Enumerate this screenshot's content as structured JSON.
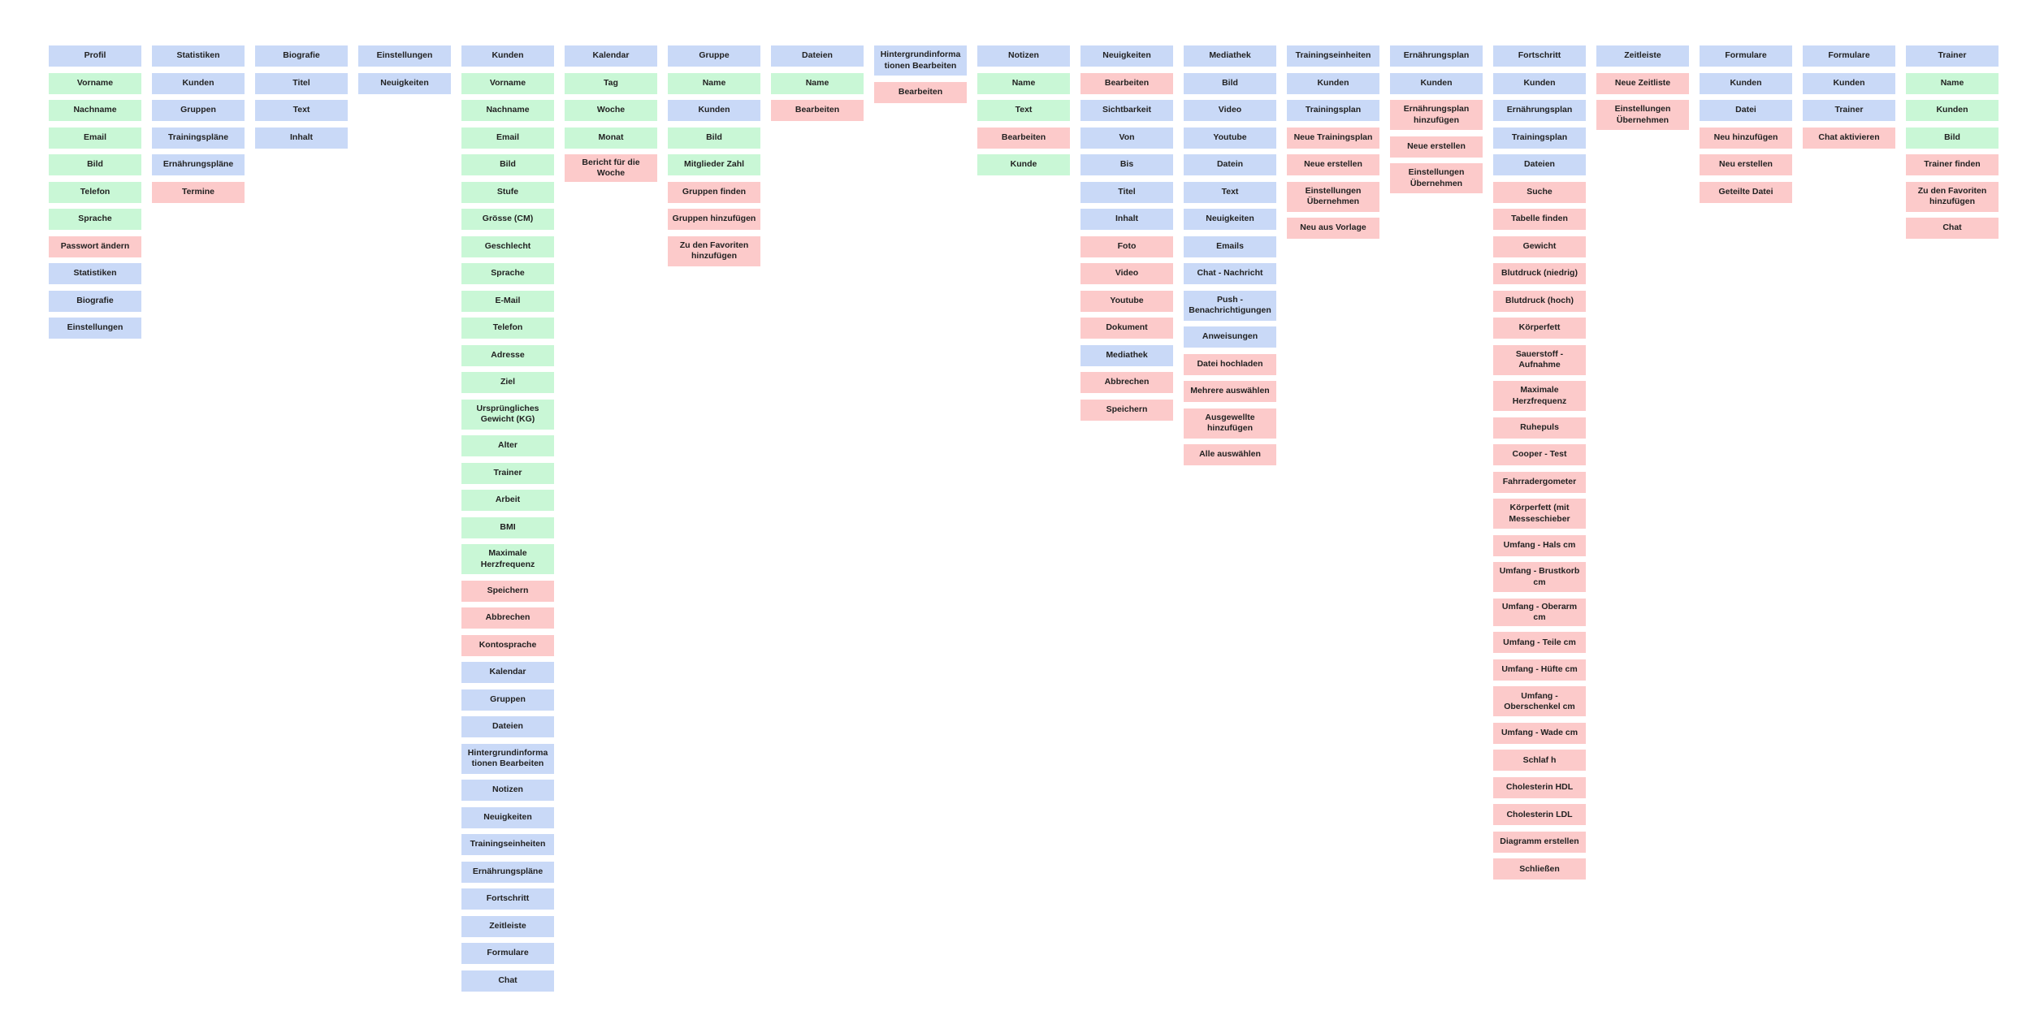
{
  "colors": {
    "blue": "#c9d9f7",
    "green": "#c9f7d6",
    "red": "#fccaca"
  },
  "columns": [
    {
      "items": [
        {
          "text": "Profil",
          "color": "blue"
        },
        {
          "text": "Vorname",
          "color": "green"
        },
        {
          "text": "Nachname",
          "color": "green"
        },
        {
          "text": "Email",
          "color": "green"
        },
        {
          "text": "Bild",
          "color": "green"
        },
        {
          "text": "Telefon",
          "color": "green"
        },
        {
          "text": "Sprache",
          "color": "green"
        },
        {
          "text": "Passwort ändern",
          "color": "red"
        },
        {
          "text": "Statistiken",
          "color": "blue"
        },
        {
          "text": "Biografie",
          "color": "blue"
        },
        {
          "text": "Einstellungen",
          "color": "blue"
        }
      ]
    },
    {
      "items": [
        {
          "text": "Statistiken",
          "color": "blue"
        },
        {
          "text": "Kunden",
          "color": "blue"
        },
        {
          "text": "Gruppen",
          "color": "blue"
        },
        {
          "text": "Trainingspläne",
          "color": "blue"
        },
        {
          "text": "Ernährungspläne",
          "color": "blue"
        },
        {
          "text": "Termine",
          "color": "red"
        }
      ]
    },
    {
      "items": [
        {
          "text": "Biografie",
          "color": "blue"
        },
        {
          "text": "Titel",
          "color": "blue"
        },
        {
          "text": "Text",
          "color": "blue"
        },
        {
          "text": "Inhalt",
          "color": "blue"
        }
      ]
    },
    {
      "items": [
        {
          "text": "Einstellungen",
          "color": "blue"
        },
        {
          "text": "Neuigkeiten",
          "color": "blue"
        }
      ]
    },
    {
      "items": [
        {
          "text": "Kunden",
          "color": "blue"
        },
        {
          "text": "Vorname",
          "color": "green"
        },
        {
          "text": "Nachname",
          "color": "green"
        },
        {
          "text": "Email",
          "color": "green"
        },
        {
          "text": "Bild",
          "color": "green"
        },
        {
          "text": "Stufe",
          "color": "green"
        },
        {
          "text": "Grösse (CM)",
          "color": "green"
        },
        {
          "text": "Geschlecht",
          "color": "green"
        },
        {
          "text": "Sprache",
          "color": "green"
        },
        {
          "text": "E-Mail",
          "color": "green"
        },
        {
          "text": "Telefon",
          "color": "green"
        },
        {
          "text": "Adresse",
          "color": "green"
        },
        {
          "text": "Ziel",
          "color": "green"
        },
        {
          "text": "Ursprüngliches Gewicht (KG)",
          "color": "green",
          "two": true
        },
        {
          "text": "Alter",
          "color": "green"
        },
        {
          "text": "Trainer",
          "color": "green"
        },
        {
          "text": "Arbeit",
          "color": "green"
        },
        {
          "text": "BMI",
          "color": "green"
        },
        {
          "text": "Maximale Herzfrequenz",
          "color": "green",
          "two": true
        },
        {
          "text": "Speichern",
          "color": "red"
        },
        {
          "text": "Abbrechen",
          "color": "red"
        },
        {
          "text": "Kontosprache",
          "color": "red"
        },
        {
          "text": "Kalendar",
          "color": "blue"
        },
        {
          "text": "Gruppen",
          "color": "blue"
        },
        {
          "text": "Dateien",
          "color": "blue"
        },
        {
          "text": "Hintergrundinforma tionen Bearbeiten",
          "color": "blue",
          "two": true
        },
        {
          "text": "Notizen",
          "color": "blue"
        },
        {
          "text": "Neuigkeiten",
          "color": "blue"
        },
        {
          "text": "Trainingseinheiten",
          "color": "blue"
        },
        {
          "text": "Ernährungspläne",
          "color": "blue"
        },
        {
          "text": "Fortschritt",
          "color": "blue"
        },
        {
          "text": "Zeitleiste",
          "color": "blue"
        },
        {
          "text": "Formulare",
          "color": "blue"
        },
        {
          "text": "Chat",
          "color": "blue"
        }
      ]
    },
    {
      "items": [
        {
          "text": "Kalendar",
          "color": "blue"
        },
        {
          "text": "Tag",
          "color": "green"
        },
        {
          "text": "Woche",
          "color": "green"
        },
        {
          "text": "Monat",
          "color": "green"
        },
        {
          "text": "Bericht für die Woche",
          "color": "red"
        }
      ]
    },
    {
      "items": [
        {
          "text": "Gruppe",
          "color": "blue"
        },
        {
          "text": "Name",
          "color": "green"
        },
        {
          "text": "Kunden",
          "color": "blue"
        },
        {
          "text": "Bild",
          "color": "green"
        },
        {
          "text": "Mitglieder Zahl",
          "color": "green"
        },
        {
          "text": "Gruppen finden",
          "color": "red"
        },
        {
          "text": "Gruppen hinzufügen",
          "color": "red"
        },
        {
          "text": "Zu den Favoriten hinzufügen",
          "color": "red",
          "two": true
        }
      ]
    },
    {
      "items": [
        {
          "text": "Dateien",
          "color": "blue"
        },
        {
          "text": "Name",
          "color": "green"
        },
        {
          "text": "Bearbeiten",
          "color": "red"
        }
      ]
    },
    {
      "items": [
        {
          "text": "Hintergrundinforma tionen Bearbeiten",
          "color": "blue",
          "two": true
        },
        {
          "text": "Bearbeiten",
          "color": "red"
        }
      ]
    },
    {
      "items": [
        {
          "text": "Notizen",
          "color": "blue"
        },
        {
          "text": "Name",
          "color": "green"
        },
        {
          "text": "Text",
          "color": "green"
        },
        {
          "text": "Bearbeiten",
          "color": "red"
        },
        {
          "text": "Kunde",
          "color": "green"
        }
      ]
    },
    {
      "items": [
        {
          "text": "Neuigkeiten",
          "color": "blue"
        },
        {
          "text": "Bearbeiten",
          "color": "red"
        },
        {
          "text": "Sichtbarkeit",
          "color": "blue"
        },
        {
          "text": "Von",
          "color": "blue"
        },
        {
          "text": "Bis",
          "color": "blue"
        },
        {
          "text": "Titel",
          "color": "blue"
        },
        {
          "text": "Inhalt",
          "color": "blue"
        },
        {
          "text": "Foto",
          "color": "red"
        },
        {
          "text": "Video",
          "color": "red"
        },
        {
          "text": "Youtube",
          "color": "red"
        },
        {
          "text": "Dokument",
          "color": "red"
        },
        {
          "text": "Mediathek",
          "color": "blue"
        },
        {
          "text": "Abbrechen",
          "color": "red"
        },
        {
          "text": "Speichern",
          "color": "red"
        }
      ]
    },
    {
      "items": [
        {
          "text": "Mediathek",
          "color": "blue"
        },
        {
          "text": "Bild",
          "color": "blue"
        },
        {
          "text": "Video",
          "color": "blue"
        },
        {
          "text": "Youtube",
          "color": "blue"
        },
        {
          "text": "Datein",
          "color": "blue"
        },
        {
          "text": "Text",
          "color": "blue"
        },
        {
          "text": "Neuigkeiten",
          "color": "blue"
        },
        {
          "text": "Emails",
          "color": "blue"
        },
        {
          "text": "Chat - Nachricht",
          "color": "blue"
        },
        {
          "text": "Push - Benachrichtigungen",
          "color": "blue",
          "two": true
        },
        {
          "text": "Anweisungen",
          "color": "blue"
        },
        {
          "text": "Datei hochladen",
          "color": "red"
        },
        {
          "text": "Mehrere auswählen",
          "color": "red"
        },
        {
          "text": "Ausgewellte hinzufügen",
          "color": "red",
          "two": true
        },
        {
          "text": "Alle auswählen",
          "color": "red"
        }
      ]
    },
    {
      "items": [
        {
          "text": "Trainingseinheiten",
          "color": "blue"
        },
        {
          "text": "Kunden",
          "color": "blue"
        },
        {
          "text": "Trainingsplan",
          "color": "blue"
        },
        {
          "text": "Neue Trainingsplan",
          "color": "red"
        },
        {
          "text": "Neue erstellen",
          "color": "red"
        },
        {
          "text": "Einstellungen Übernehmen",
          "color": "red",
          "two": true
        },
        {
          "text": "Neu aus Vorlage",
          "color": "red"
        }
      ]
    },
    {
      "items": [
        {
          "text": "Ernährungsplan",
          "color": "blue"
        },
        {
          "text": "Kunden",
          "color": "blue"
        },
        {
          "text": "Ernährungsplan hinzufügen",
          "color": "red",
          "two": true
        },
        {
          "text": "Neue erstellen",
          "color": "red"
        },
        {
          "text": "Einstellungen Übernehmen",
          "color": "red",
          "two": true
        }
      ]
    },
    {
      "items": [
        {
          "text": "Fortschritt",
          "color": "blue"
        },
        {
          "text": "Kunden",
          "color": "blue"
        },
        {
          "text": "Ernährungsplan",
          "color": "blue"
        },
        {
          "text": "Trainingsplan",
          "color": "blue"
        },
        {
          "text": "Dateien",
          "color": "blue"
        },
        {
          "text": "Suche",
          "color": "red"
        },
        {
          "text": "Tabelle finden",
          "color": "red"
        },
        {
          "text": "Gewicht",
          "color": "red"
        },
        {
          "text": "Blutdruck (niedrig)",
          "color": "red"
        },
        {
          "text": "Blutdruck (hoch)",
          "color": "red"
        },
        {
          "text": "Körperfett",
          "color": "red"
        },
        {
          "text": "Sauerstoff - Aufnahme",
          "color": "red",
          "two": true
        },
        {
          "text": "Maximale Herzfrequenz",
          "color": "red",
          "two": true
        },
        {
          "text": "Ruhepuls",
          "color": "red"
        },
        {
          "text": "Cooper - Test",
          "color": "red"
        },
        {
          "text": "Fahrradergometer",
          "color": "red"
        },
        {
          "text": "Körperfett (mit Messeschieber",
          "color": "red",
          "two": true
        },
        {
          "text": "Umfang - Hals cm",
          "color": "red"
        },
        {
          "text": "Umfang - Brustkorb cm",
          "color": "red",
          "two": true
        },
        {
          "text": "Umfang - Oberarm cm",
          "color": "red"
        },
        {
          "text": "Umfang - Teile cm",
          "color": "red"
        },
        {
          "text": "Umfang - Hüfte cm",
          "color": "red"
        },
        {
          "text": "Umfang - Oberschenkel cm",
          "color": "red",
          "two": true
        },
        {
          "text": "Umfang - Wade cm",
          "color": "red"
        },
        {
          "text": "Schlaf h",
          "color": "red"
        },
        {
          "text": "Cholesterin HDL",
          "color": "red"
        },
        {
          "text": "Cholesterin LDL",
          "color": "red"
        },
        {
          "text": "Diagramm erstellen",
          "color": "red"
        },
        {
          "text": "Schließen",
          "color": "red"
        }
      ]
    },
    {
      "items": [
        {
          "text": "Zeitleiste",
          "color": "blue"
        },
        {
          "text": "Neue Zeitliste",
          "color": "red"
        },
        {
          "text": "Einstellungen Übernehmen",
          "color": "red",
          "two": true
        }
      ]
    },
    {
      "items": [
        {
          "text": "Formulare",
          "color": "blue"
        },
        {
          "text": "Kunden",
          "color": "blue"
        },
        {
          "text": "Datei",
          "color": "blue"
        },
        {
          "text": "Neu hinzufügen",
          "color": "red"
        },
        {
          "text": "Neu erstellen",
          "color": "red"
        },
        {
          "text": "Geteilte Datei",
          "color": "red"
        }
      ]
    },
    {
      "items": [
        {
          "text": "Formulare",
          "color": "blue"
        },
        {
          "text": "Kunden",
          "color": "blue"
        },
        {
          "text": "Trainer",
          "color": "blue"
        },
        {
          "text": "Chat aktivieren",
          "color": "red"
        }
      ]
    },
    {
      "items": [
        {
          "text": "Trainer",
          "color": "blue"
        },
        {
          "text": "Name",
          "color": "green"
        },
        {
          "text": "Kunden",
          "color": "green"
        },
        {
          "text": "Bild",
          "color": "green"
        },
        {
          "text": "Trainer finden",
          "color": "red"
        },
        {
          "text": "Zu den Favoriten hinzufügen",
          "color": "red",
          "two": true
        },
        {
          "text": "Chat",
          "color": "red"
        }
      ]
    }
  ]
}
